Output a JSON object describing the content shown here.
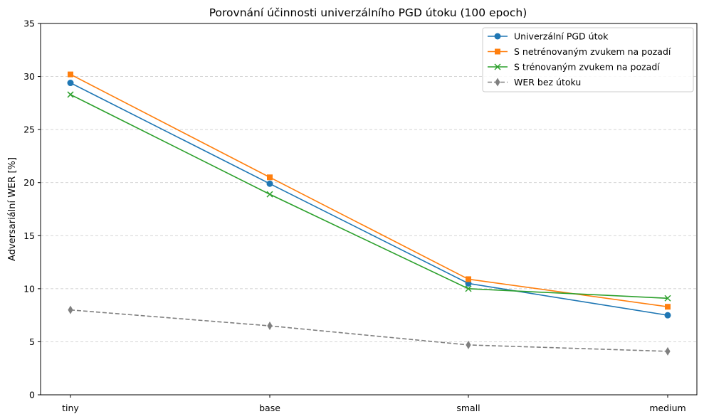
{
  "chart_data": {
    "type": "line",
    "title": "Porovnání účinnosti univerzálního PGD útoku (100 epoch)",
    "xlabel": "",
    "ylabel": "Adversariální WER [%]",
    "categories": [
      "tiny",
      "base",
      "small",
      "medium"
    ],
    "ylim": [
      0,
      35
    ],
    "yticks": [
      0,
      5,
      10,
      15,
      20,
      25,
      30,
      35
    ],
    "grid": "y-dashed",
    "legend_position": "top-right",
    "series": [
      {
        "name": "Univerzální PGD útok",
        "values": [
          29.4,
          19.9,
          10.5,
          7.5
        ],
        "color": "#1f77b4",
        "marker": "circle",
        "dash": "solid"
      },
      {
        "name": "S netrénovaným zvukem na pozadí",
        "values": [
          30.2,
          20.5,
          10.9,
          8.3
        ],
        "color": "#ff7f0e",
        "marker": "square",
        "dash": "solid"
      },
      {
        "name": "S trénovaným zvukem na pozadí",
        "values": [
          28.3,
          18.9,
          10.0,
          9.1
        ],
        "color": "#2ca02c",
        "marker": "x",
        "dash": "solid"
      },
      {
        "name": "WER bez útoku",
        "values": [
          8.0,
          6.5,
          4.7,
          4.1
        ],
        "color": "#7f7f7f",
        "marker": "diamond",
        "dash": "dashed"
      }
    ]
  }
}
